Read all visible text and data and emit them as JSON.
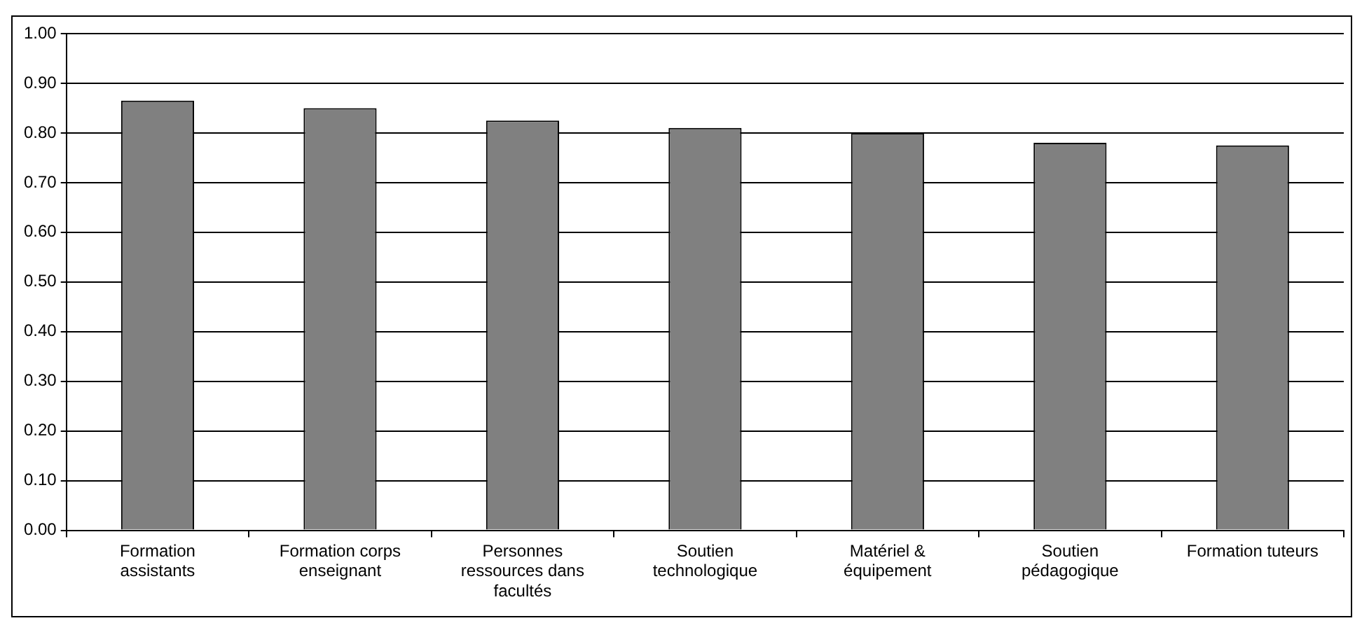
{
  "chart_data": {
    "type": "bar",
    "categories": [
      "Formation assistants",
      "Formation corps enseignant",
      "Personnes ressources dans facultés",
      "Soutien technologique",
      "Matériel & équipement",
      "Soutien pédagogique",
      "Formation tuteurs"
    ],
    "values": [
      0.865,
      0.85,
      0.825,
      0.81,
      0.8,
      0.78,
      0.775
    ],
    "color": "#808080",
    "ylim": [
      0,
      1
    ],
    "yticks": [
      {
        "value": 0,
        "label": "0.00"
      },
      {
        "value": 0.1,
        "label": "0.10"
      },
      {
        "value": 0.2,
        "label": "0.20"
      },
      {
        "value": 0.3,
        "label": "0.30"
      },
      {
        "value": 0.4,
        "label": "0.40"
      },
      {
        "value": 0.5,
        "label": "0.50"
      },
      {
        "value": 0.6,
        "label": "0.60"
      },
      {
        "value": 0.7,
        "label": "0.70"
      },
      {
        "value": 0.8,
        "label": "0.80"
      },
      {
        "value": 0.9,
        "label": "0.90"
      },
      {
        "value": 1,
        "label": "1.00"
      }
    ],
    "grid": "y"
  }
}
